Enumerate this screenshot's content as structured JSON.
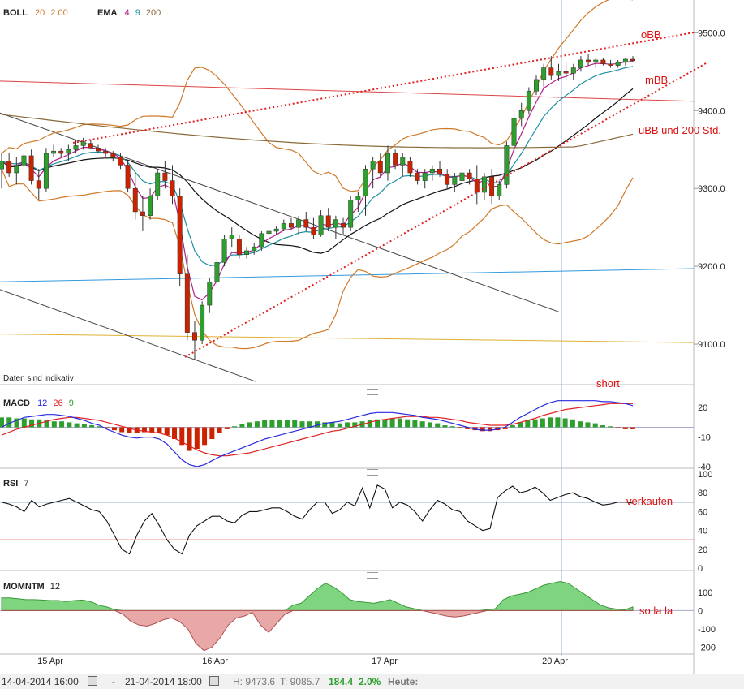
{
  "main_legend": {
    "boll_label": "BOLL",
    "boll_p1": "20",
    "boll_p2": "2.00",
    "ema_label": "EMA",
    "ema_p1": "4",
    "ema_p2": "9",
    "ema_p3": "200"
  },
  "disclaimer": "Daten sind indikativ",
  "annotations": {
    "obb": "oBB",
    "mbb": "mBB",
    "ubb": "uBB und 200 Std.",
    "short": "short",
    "verkaufen": "verkaufen",
    "so_la_la": "so la la"
  },
  "macd_legend": {
    "label": "MACD",
    "p1": "12",
    "p2": "26",
    "p3": "9"
  },
  "rsi_legend": {
    "label": "RSI",
    "p1": "7"
  },
  "mom_legend": {
    "label": "MOMNTM",
    "p1": "12"
  },
  "date_labels": [
    "15 Apr",
    "16 Apr",
    "17 Apr",
    "20 Apr"
  ],
  "footer": {
    "start": "14-04-2014 16:00",
    "sep": "-",
    "end": "21-04-2014 18:00",
    "high": "H: 9473.6",
    "low": "T: 9085.7",
    "change": "184.4",
    "change_pct": "2.0%",
    "today": "Heute:"
  },
  "colors": {
    "up": "#2e9e2e",
    "down": "#cc2200",
    "boll": "#d07a2a",
    "ema4": "#b0208a",
    "ema9": "#1e8fa0",
    "ema200": "#8a6a3a",
    "trend": "#e02020",
    "macd": "#2a2ae0",
    "signal": "#e02020",
    "rsi": "#111111"
  },
  "chart_data": [
    {
      "type": "candlestick",
      "title": "",
      "ylim": [
        9050,
        9540
      ],
      "y_ticks": [
        "9100.0",
        "9200.0",
        "9300.0",
        "9400.0",
        "9500.0"
      ],
      "y_tick_values": [
        9100,
        9200,
        9300,
        9400,
        9500
      ],
      "x_labels": [
        "15 Apr",
        "16 Apr",
        "17 Apr",
        "20 Apr"
      ],
      "ohlc": [
        [
          9325,
          9345,
          9300,
          9335
        ],
        [
          9335,
          9345,
          9315,
          9320
        ],
        [
          9320,
          9340,
          9305,
          9330
        ],
        [
          9330,
          9345,
          9325,
          9342
        ],
        [
          9342,
          9350,
          9305,
          9310
        ],
        [
          9310,
          9325,
          9285,
          9300
        ],
        [
          9300,
          9352,
          9295,
          9345
        ],
        [
          9345,
          9356,
          9340,
          9348
        ],
        [
          9348,
          9352,
          9340,
          9345
        ],
        [
          9345,
          9356,
          9335,
          9350
        ],
        [
          9350,
          9362,
          9345,
          9355
        ],
        [
          9355,
          9365,
          9350,
          9360
        ],
        [
          9358,
          9362,
          9350,
          9352
        ],
        [
          9352,
          9356,
          9345,
          9348
        ],
        [
          9348,
          9352,
          9340,
          9345
        ],
        [
          9345,
          9348,
          9335,
          9340
        ],
        [
          9340,
          9345,
          9325,
          9330
        ],
        [
          9330,
          9335,
          9295,
          9300
        ],
        [
          9300,
          9320,
          9260,
          9270
        ],
        [
          9270,
          9290,
          9245,
          9265
        ],
        [
          9265,
          9300,
          9260,
          9290
        ],
        [
          9290,
          9325,
          9285,
          9320
        ],
        [
          9320,
          9335,
          9300,
          9310
        ],
        [
          9310,
          9330,
          9280,
          9290
        ],
        [
          9290,
          9300,
          9175,
          9190
        ],
        [
          9190,
          9215,
          9105,
          9115
        ],
        [
          9115,
          9130,
          9080,
          9105
        ],
        [
          9105,
          9155,
          9100,
          9150
        ],
        [
          9150,
          9185,
          9140,
          9180
        ],
        [
          9180,
          9210,
          9175,
          9205
        ],
        [
          9205,
          9240,
          9200,
          9235
        ],
        [
          9235,
          9250,
          9225,
          9240
        ],
        [
          9235,
          9240,
          9210,
          9215
        ],
        [
          9215,
          9225,
          9210,
          9220
        ],
        [
          9220,
          9230,
          9215,
          9225
        ],
        [
          9225,
          9245,
          9220,
          9242
        ],
        [
          9242,
          9250,
          9238,
          9245
        ],
        [
          9245,
          9252,
          9240,
          9248
        ],
        [
          9248,
          9260,
          9245,
          9255
        ],
        [
          9255,
          9262,
          9248,
          9250
        ],
        [
          9250,
          9265,
          9240,
          9260
        ],
        [
          9260,
          9270,
          9245,
          9250
        ],
        [
          9250,
          9262,
          9235,
          9240
        ],
        [
          9240,
          9272,
          9238,
          9265
        ],
        [
          9265,
          9275,
          9245,
          9250
        ],
        [
          9250,
          9265,
          9235,
          9260
        ],
        [
          9255,
          9262,
          9240,
          9250
        ],
        [
          9250,
          9290,
          9245,
          9285
        ],
        [
          9285,
          9295,
          9270,
          9290
        ],
        [
          9290,
          9330,
          9265,
          9325
        ],
        [
          9325,
          9340,
          9300,
          9335
        ],
        [
          9335,
          9345,
          9315,
          9320
        ],
        [
          9320,
          9355,
          9310,
          9345
        ],
        [
          9345,
          9350,
          9325,
          9330
        ],
        [
          9330,
          9345,
          9315,
          9340
        ],
        [
          9335,
          9340,
          9315,
          9320
        ],
        [
          9320,
          9325,
          9305,
          9310
        ],
        [
          9310,
          9325,
          9300,
          9320
        ],
        [
          9320,
          9330,
          9310,
          9325
        ],
        [
          9325,
          9335,
          9315,
          9318
        ],
        [
          9318,
          9325,
          9300,
          9305
        ],
        [
          9305,
          9320,
          9295,
          9315
        ],
        [
          9310,
          9325,
          9300,
          9320
        ],
        [
          9320,
          9325,
          9305,
          9312
        ],
        [
          9312,
          9330,
          9280,
          9295
        ],
        [
          9295,
          9320,
          9285,
          9315
        ],
        [
          9315,
          9325,
          9280,
          9290
        ],
        [
          9290,
          9310,
          9285,
          9305
        ],
        [
          9305,
          9360,
          9300,
          9355
        ],
        [
          9355,
          9400,
          9345,
          9390
        ],
        [
          9390,
          9410,
          9380,
          9400
        ],
        [
          9400,
          9430,
          9395,
          9425
        ],
        [
          9425,
          9445,
          9420,
          9440
        ],
        [
          9440,
          9460,
          9430,
          9455
        ],
        [
          9455,
          9470,
          9440,
          9445
        ],
        [
          9445,
          9460,
          9438,
          9450
        ],
        [
          9450,
          9462,
          9440,
          9448
        ],
        [
          9448,
          9460,
          9440,
          9455
        ],
        [
          9455,
          9470,
          9450,
          9465
        ],
        [
          9465,
          9473,
          9458,
          9462
        ],
        [
          9462,
          9468,
          9455,
          9465
        ],
        [
          9465,
          9468,
          9458,
          9460
        ],
        [
          9460,
          9465,
          9455,
          9458
        ],
        [
          9458,
          9465,
          9455,
          9462
        ],
        [
          9462,
          9468,
          9458,
          9466
        ],
        [
          9466,
          9470,
          9462,
          9464
        ]
      ]
    },
    {
      "type": "line",
      "title": "MACD",
      "ylim": [
        -40,
        35
      ],
      "y_ticks": [
        "20",
        "-10",
        "-40"
      ],
      "y_tick_values": [
        20,
        -10,
        -40
      ],
      "histogram": [
        10,
        10,
        9,
        9,
        8,
        8,
        7,
        6,
        6,
        5,
        4,
        3,
        2,
        1,
        -1,
        -3,
        -5,
        -6,
        -6,
        -5,
        -5,
        -6,
        -8,
        -12,
        -18,
        -24,
        -22,
        -18,
        -12,
        -6,
        -2,
        1,
        3,
        5,
        6,
        7,
        7,
        7,
        7,
        7,
        6,
        6,
        6,
        5,
        5,
        4,
        5,
        5,
        6,
        7,
        8,
        8,
        9,
        9,
        8,
        7,
        6,
        5,
        4,
        2,
        1,
        -1,
        -2,
        -3,
        -4,
        -4,
        -3,
        -2,
        2,
        5,
        7,
        8,
        9,
        10,
        10,
        9,
        8,
        6,
        5,
        4,
        2,
        1,
        -1,
        -2,
        -2
      ],
      "series": [
        {
          "name": "MACD",
          "values": [
            0,
            4,
            7,
            10,
            11,
            12,
            13,
            13,
            12,
            11,
            9,
            7,
            4,
            2,
            -2,
            -5,
            -8,
            -10,
            -11,
            -10,
            -10,
            -12,
            -17,
            -25,
            -33,
            -38,
            -40,
            -38,
            -34,
            -30,
            -27,
            -24,
            -21,
            -18,
            -15,
            -12,
            -10,
            -8,
            -6,
            -4,
            -2,
            0,
            2,
            4,
            5,
            6,
            8,
            10,
            12,
            14,
            15,
            15,
            15,
            14,
            13,
            12,
            10,
            9,
            8,
            6,
            4,
            2,
            0,
            -2,
            -3,
            -3,
            -2,
            0,
            5,
            10,
            14,
            18,
            22,
            25,
            27,
            27,
            27,
            27,
            27,
            27,
            26,
            26,
            25,
            24,
            22
          ]
        },
        {
          "name": "Signal",
          "values": [
            -8,
            -5,
            -2,
            0,
            2,
            4,
            6,
            8,
            9,
            10,
            10,
            9,
            8,
            7,
            5,
            3,
            1,
            -1,
            -3,
            -4,
            -5,
            -6,
            -8,
            -11,
            -15,
            -19,
            -23,
            -26,
            -28,
            -29,
            -29,
            -28,
            -27,
            -26,
            -24,
            -22,
            -20,
            -18,
            -16,
            -14,
            -12,
            -10,
            -8,
            -6,
            -4,
            -3,
            -1,
            1,
            3,
            5,
            7,
            8,
            9,
            10,
            11,
            11,
            11,
            10,
            10,
            9,
            8,
            7,
            5,
            4,
            3,
            2,
            2,
            2,
            3,
            5,
            7,
            9,
            12,
            14,
            16,
            18,
            19,
            20,
            21,
            22,
            23,
            24,
            24,
            24,
            24
          ]
        }
      ]
    },
    {
      "type": "line",
      "title": "RSI",
      "ylim": [
        0,
        100
      ],
      "y_ticks": [
        "100",
        "80",
        "60",
        "40",
        "20",
        "0"
      ],
      "y_tick_values": [
        100,
        80,
        60,
        40,
        20,
        0
      ],
      "levels": [
        70,
        30
      ],
      "series": [
        {
          "name": "RSI",
          "values": [
            70,
            68,
            65,
            60,
            72,
            65,
            68,
            70,
            72,
            74,
            70,
            66,
            62,
            60,
            50,
            35,
            20,
            15,
            35,
            50,
            58,
            45,
            30,
            20,
            15,
            35,
            45,
            50,
            55,
            55,
            50,
            48,
            56,
            60,
            60,
            62,
            64,
            64,
            60,
            55,
            52,
            62,
            70,
            70,
            58,
            62,
            70,
            66,
            85,
            64,
            88,
            84,
            64,
            70,
            67,
            60,
            50,
            62,
            72,
            68,
            62,
            60,
            50,
            45,
            40,
            42,
            75,
            82,
            87,
            80,
            82,
            86,
            80,
            72,
            75,
            78,
            80,
            76,
            74,
            70,
            67,
            68,
            70,
            70,
            69
          ]
        }
      ]
    },
    {
      "type": "area",
      "title": "MOMNTM",
      "ylim": [
        -230,
        180
      ],
      "y_ticks": [
        "100",
        "0",
        "-100",
        "-200"
      ],
      "y_tick_values": [
        100,
        0,
        -100,
        -200
      ],
      "series": [
        {
          "name": "MOMNTM",
          "values": [
            70,
            70,
            65,
            60,
            60,
            58,
            55,
            55,
            50,
            55,
            58,
            50,
            30,
            20,
            5,
            -20,
            -60,
            -80,
            -85,
            -70,
            -50,
            -40,
            -60,
            -100,
            -180,
            -220,
            -200,
            -150,
            -80,
            -40,
            -30,
            -10,
            -80,
            -120,
            -70,
            -20,
            30,
            40,
            80,
            120,
            150,
            130,
            100,
            60,
            50,
            45,
            40,
            50,
            60,
            40,
            20,
            10,
            0,
            -10,
            -20,
            -30,
            -35,
            -30,
            -20,
            -10,
            5,
            10,
            60,
            80,
            90,
            100,
            120,
            140,
            150,
            160,
            150,
            120,
            90,
            60,
            30,
            15,
            8,
            5,
            20
          ]
        }
      ]
    }
  ]
}
